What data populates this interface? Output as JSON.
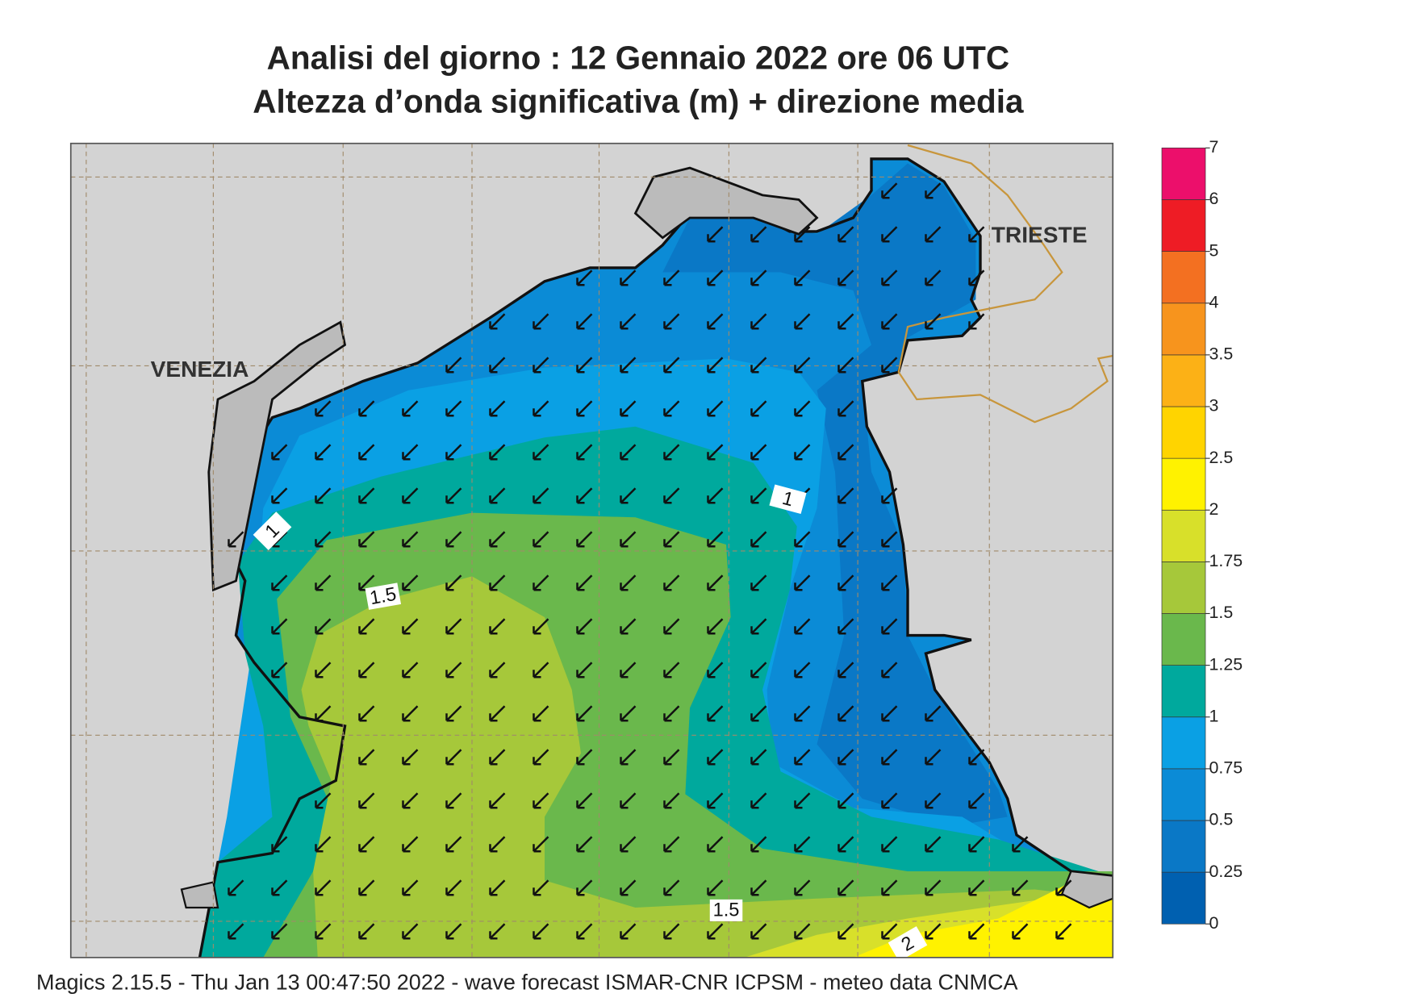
{
  "header": {
    "title_line1": "Analisi del giorno :  12  Gennaio  2022   ore 06 UTC",
    "title_line2": "Altezza d’onda significativa (m) + direzione media"
  },
  "places": [
    "VENEZIA",
    "TRIESTE"
  ],
  "contour_labels": [
    1,
    1,
    1.5,
    1.5,
    2
  ],
  "colorbar": {
    "levels": [
      0,
      0.25,
      0.5,
      0.75,
      1,
      1.25,
      1.5,
      1.75,
      2,
      2.5,
      3,
      3.5,
      4,
      5,
      6,
      7
    ],
    "colors": [
      "#0060b0",
      "#0a78c6",
      "#0b8bd6",
      "#0aa0e4",
      "#00a99d",
      "#6ab84c",
      "#a6c83a",
      "#d8e02a",
      "#fff200",
      "#ffd400",
      "#fcb116",
      "#f7941d",
      "#f37021",
      "#ee1c25",
      "#ec0f6b"
    ]
  },
  "footer": "Magics 2.15.5 - Thu Jan 13 00:47:50 2022 - wave forecast  ISMAR-CNR  ICPSM - meteo data   CNMCA"
}
